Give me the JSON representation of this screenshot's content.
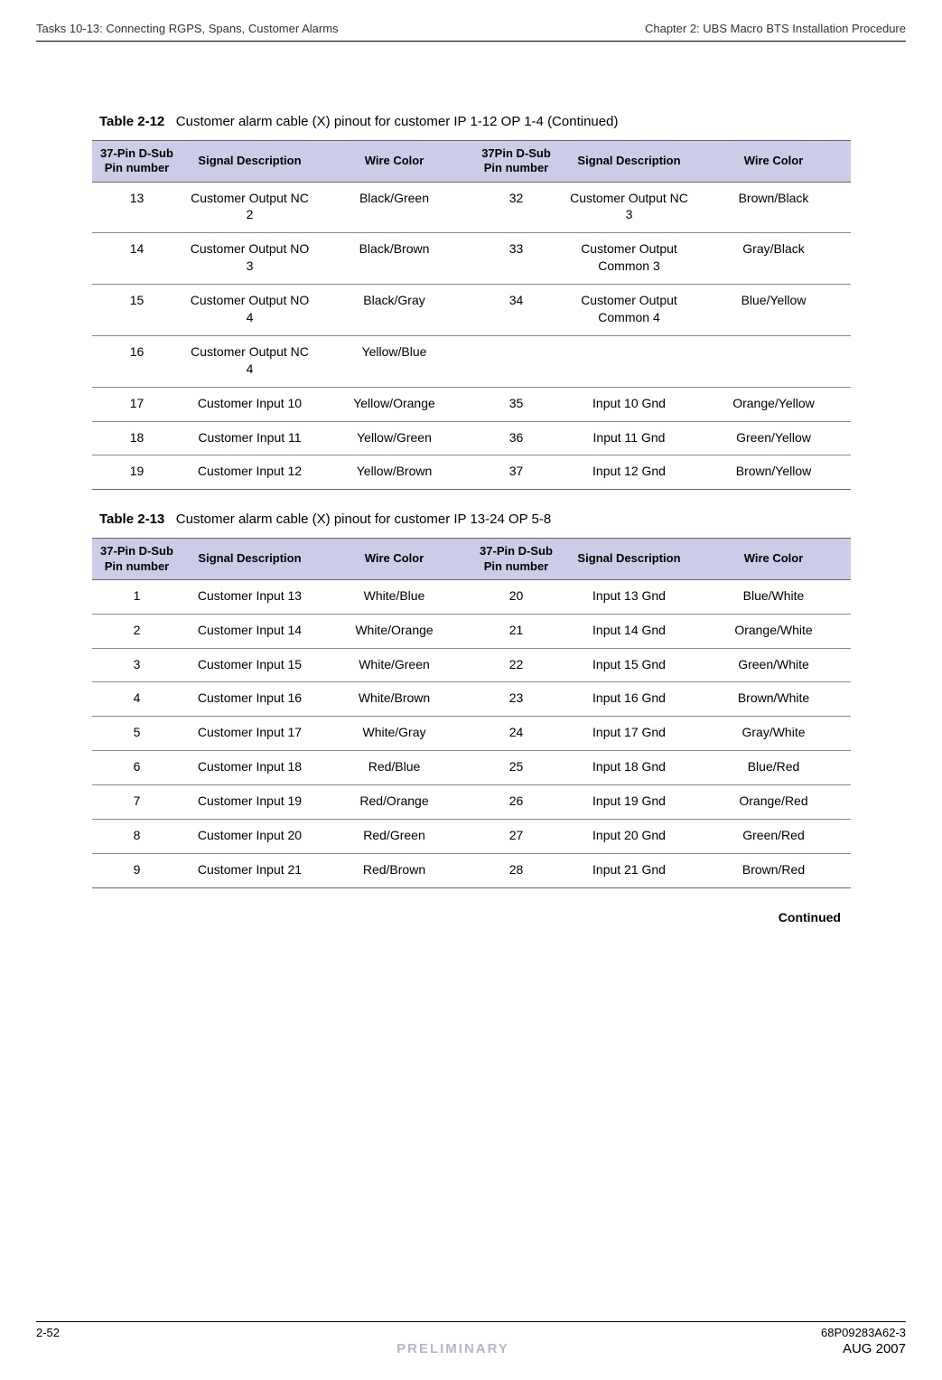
{
  "header": {
    "left": "Tasks 10-13: Connecting RGPS, Spans, Customer Alarms",
    "right": "Chapter 2: UBS Macro BTS Installation Procedure"
  },
  "table212": {
    "label": "Table 2-12",
    "caption": "Customer alarm cable (X) pinout for customer IP 1-12 OP 1-4 (Continued)",
    "header_bg": "#cccce8",
    "columns": [
      "37-Pin D-Sub Pin number",
      "Signal Description",
      "Wire Color",
      "37Pin D-Sub Pin number",
      "Signal Description",
      "Wire Color"
    ],
    "rows": [
      [
        "13",
        "Customer Output NC 2",
        "Black/Green",
        "32",
        "Customer Output NC 3",
        "Brown/Black"
      ],
      [
        "14",
        "Customer Output NO 3",
        "Black/Brown",
        "33",
        "Customer Output Common 3",
        "Gray/Black"
      ],
      [
        "15",
        "Customer Output NO 4",
        "Black/Gray",
        "34",
        "Customer Output Common 4",
        "Blue/Yellow"
      ],
      [
        "16",
        "Customer Output NC 4",
        "Yellow/Blue",
        "",
        "",
        ""
      ],
      [
        "17",
        "Customer Input 10",
        "Yellow/Orange",
        "35",
        "Input 10 Gnd",
        "Orange/Yellow"
      ],
      [
        "18",
        "Customer Input 11",
        "Yellow/Green",
        "36",
        "Input 11 Gnd",
        "Green/Yellow"
      ],
      [
        "19",
        "Customer Input 12",
        "Yellow/Brown",
        "37",
        "Input 12 Gnd",
        "Brown/Yellow"
      ]
    ]
  },
  "table213": {
    "label": "Table 2-13",
    "caption": "Customer alarm cable (X) pinout for customer IP 13-24 OP 5-8",
    "header_bg": "#cccce8",
    "columns": [
      "37-Pin D-Sub Pin number",
      "Signal Description",
      "Wire Color",
      "37-Pin D-Sub Pin number",
      "Signal Description",
      "Wire Color"
    ],
    "rows": [
      [
        "1",
        "Customer Input 13",
        "White/Blue",
        "20",
        "Input 13 Gnd",
        "Blue/White"
      ],
      [
        "2",
        "Customer Input 14",
        "White/Orange",
        "21",
        "Input 14 Gnd",
        "Orange/White"
      ],
      [
        "3",
        "Customer Input 15",
        "White/Green",
        "22",
        "Input 15 Gnd",
        "Green/White"
      ],
      [
        "4",
        "Customer Input 16",
        "White/Brown",
        "23",
        "Input 16 Gnd",
        "Brown/White"
      ],
      [
        "5",
        "Customer Input 17",
        "White/Gray",
        "24",
        "Input 17 Gnd",
        "Gray/White"
      ],
      [
        "6",
        "Customer Input 18",
        "Red/Blue",
        "25",
        "Input 18 Gnd",
        "Blue/Red"
      ],
      [
        "7",
        "Customer Input 19",
        "Red/Orange",
        "26",
        "Input 19 Gnd",
        "Orange/Red"
      ],
      [
        "8",
        "Customer Input 20",
        "Red/Green",
        "27",
        "Input 20 Gnd",
        "Green/Red"
      ],
      [
        "9",
        "Customer Input 21",
        "Red/Brown",
        "28",
        "Input 21 Gnd",
        "Brown/Red"
      ]
    ]
  },
  "continued_label": "Continued",
  "footer": {
    "page": "2-52",
    "docnum": "68P09283A62-3",
    "preliminary": "PRELIMINARY",
    "date": "AUG 2007"
  }
}
